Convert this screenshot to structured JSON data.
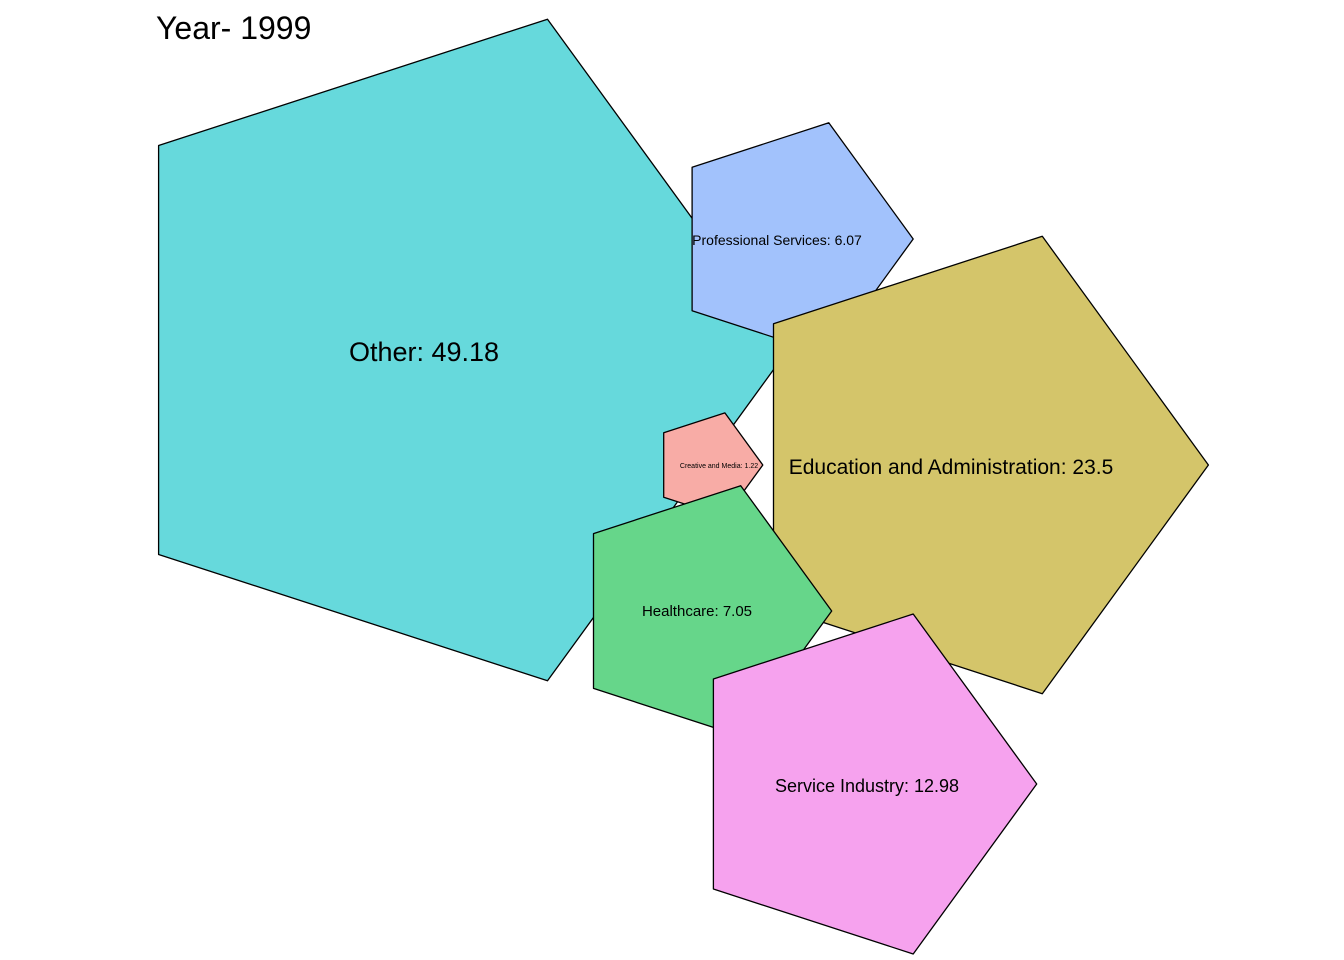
{
  "chart_data": {
    "type": "polygon-bubble",
    "title": "Year- 1999",
    "series": [
      {
        "name": "Other",
        "value": 49.18,
        "label": "Other: 49.18",
        "color": "#66d9dc"
      },
      {
        "name": "Professional Services",
        "value": 6.07,
        "label": "Professional Services: 6.07",
        "color": "#a2c2fc"
      },
      {
        "name": "Education and Administration",
        "value": 23.5,
        "label": "Education and Administration: 23.5",
        "color": "#d4c56a"
      },
      {
        "name": "Creative and Media",
        "value": 1.22,
        "label": "Creative and Media: 1.22",
        "color": "#f8aca6"
      },
      {
        "name": "Healthcare",
        "value": 7.05,
        "label": "Healthcare: 7.05",
        "color": "#66d68a"
      },
      {
        "name": "Service Industry",
        "value": 12.98,
        "label": "Service Industry: 12.98",
        "color": "#f6a2ee"
      }
    ],
    "grid": false,
    "legend": "none"
  }
}
